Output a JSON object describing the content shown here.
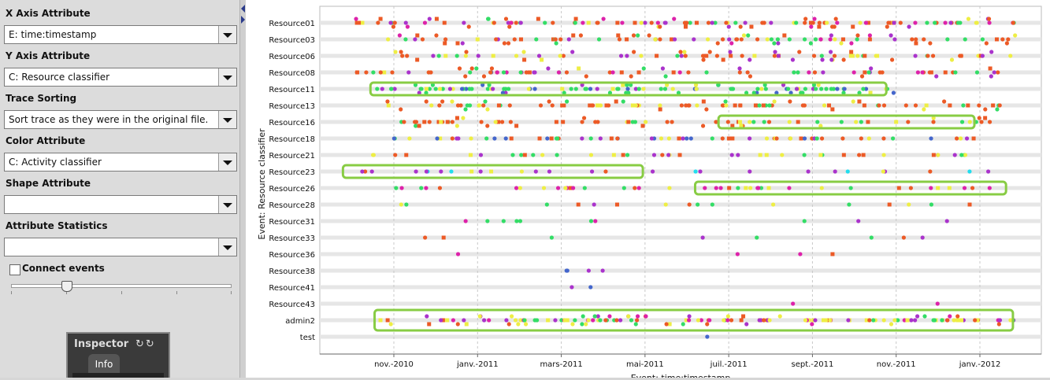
{
  "panel": {
    "x_axis": {
      "label": "X Axis Attribute",
      "value": "E: time:timestamp"
    },
    "y_axis": {
      "label": "Y Axis Attribute",
      "value": "C: Resource classifier"
    },
    "trace_sorting": {
      "label": "Trace Sorting",
      "value": "Sort trace as they were in the original file."
    },
    "color_attr": {
      "label": "Color Attribute",
      "value": "C: Activity classifier"
    },
    "shape_attr": {
      "label": "Shape Attribute",
      "value": ""
    },
    "attr_stats": {
      "label": "Attribute Statistics",
      "value": ""
    },
    "connect_events": {
      "label": "Connect events",
      "checked": false
    },
    "slider": {
      "value": 0.25
    }
  },
  "inspector": {
    "title": "Inspector",
    "tab": "Info",
    "icons": [
      "refresh-icon",
      "settings-icon"
    ]
  },
  "colors": {
    "orange": "#ec5a26",
    "yellow": "#eeee44",
    "green": "#33dd66",
    "purple": "#aa33cc",
    "magenta": "#dd22aa",
    "blue": "#4466cc",
    "cyan": "#22ddee",
    "highlight": "#88cc44"
  },
  "chart_data": {
    "type": "scatter",
    "xlabel": "Event: time:timestamp",
    "ylabel": "Event: Resource classifier",
    "x_ticks": [
      "nov.-2010",
      "janv.-2011",
      "mars-2011",
      "mai-2011",
      "juil.-2011",
      "sept.-2011",
      "nov.-2011",
      "janv.-2012"
    ],
    "categories": [
      "Resource01",
      "Resource03",
      "Resource06",
      "Resource08",
      "Resource11",
      "Resource13",
      "Resource16",
      "Resource18",
      "Resource21",
      "Resource23",
      "Resource26",
      "Resource28",
      "Resource31",
      "Resource33",
      "Resource36",
      "Resource38",
      "Resource41",
      "Resource43",
      "admin2",
      "test"
    ],
    "xlim": [
      "2010-09-10",
      "2012-03-15"
    ],
    "grid": true,
    "highlights": [
      {
        "row": "Resource11",
        "from": "2010-10-15",
        "to": "2011-10-25",
        "color": "#88cc44"
      },
      {
        "row": "Resource16",
        "from": "2011-06-25",
        "to": "2011-12-28",
        "color": "#88cc44"
      },
      {
        "row": "Resource23",
        "from": "2010-09-25",
        "to": "2011-05-01",
        "color": "#88cc44"
      },
      {
        "row": "Resource26",
        "from": "2011-06-08",
        "to": "2012-01-20",
        "color": "#88cc44"
      },
      {
        "row": "admin2",
        "from": "2010-10-18",
        "to": "2012-01-25",
        "color": "#88cc44"
      }
    ]
  }
}
